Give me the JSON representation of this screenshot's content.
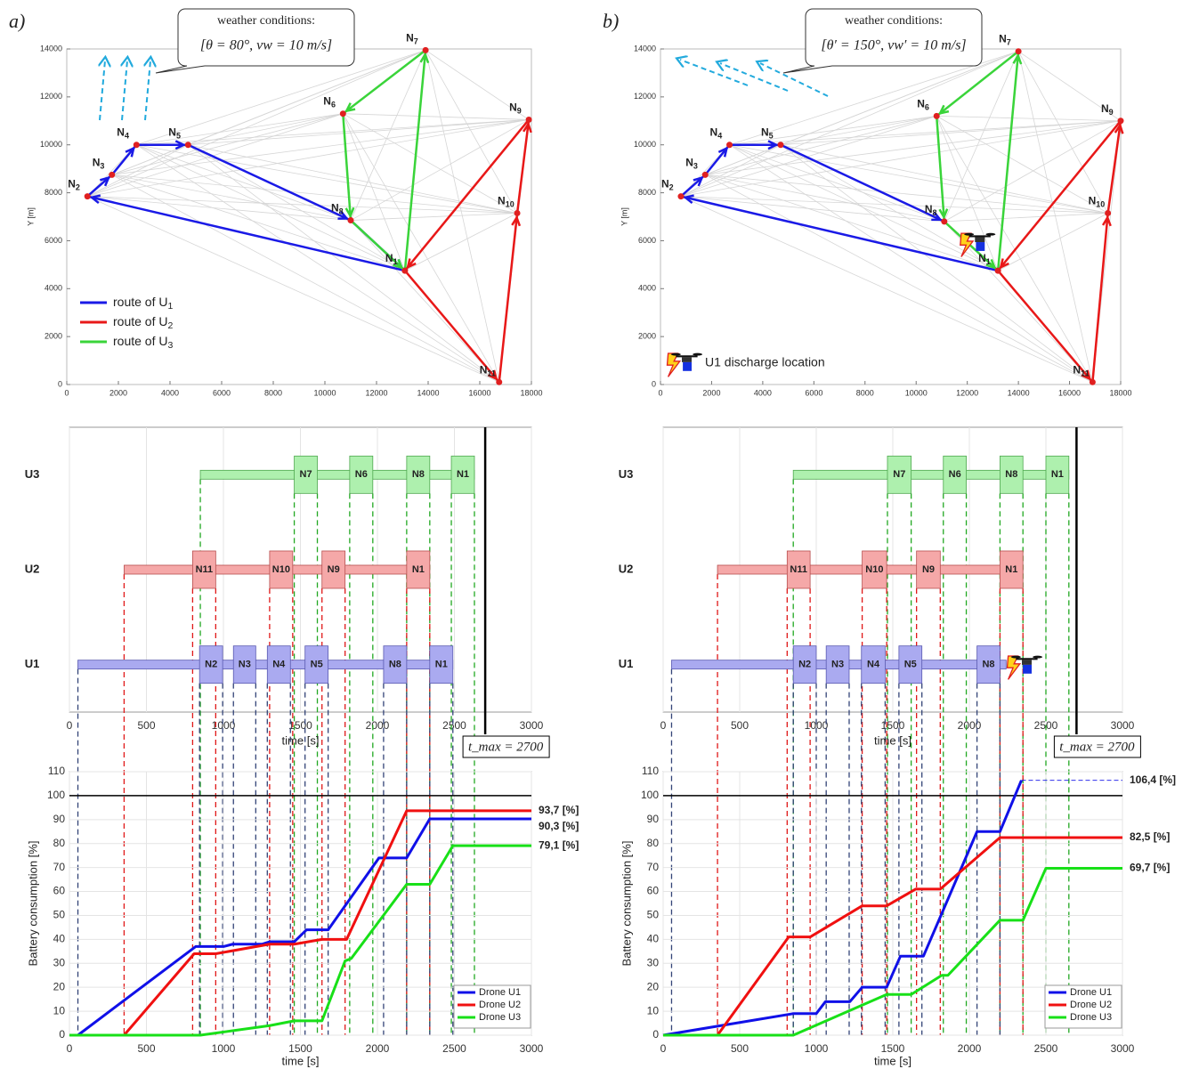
{
  "chart_data": [
    {
      "type": "network-map",
      "panel_label": "a)",
      "xlim": [
        0,
        18000
      ],
      "ylim": [
        0,
        14000
      ],
      "xticks": [
        0,
        2000,
        4000,
        6000,
        8000,
        10000,
        12000,
        14000,
        16000,
        18000
      ],
      "yticks": [
        0,
        2000,
        4000,
        6000,
        8000,
        10000,
        12000,
        14000
      ],
      "ylabel": "Y [m]",
      "weather": {
        "title": "weather conditions:",
        "text": "[θ = 80°, vw = 10 m/s]"
      },
      "edge_color": "#d6d6d6",
      "node_color": "#e02020",
      "legend": "lower left",
      "nodes": [
        {
          "label": "N1",
          "x": 13100,
          "y": 4750
        },
        {
          "label": "N2",
          "x": 800,
          "y": 7850
        },
        {
          "label": "N3",
          "x": 1750,
          "y": 8750
        },
        {
          "label": "N4",
          "x": 2700,
          "y": 10000
        },
        {
          "label": "N5",
          "x": 4700,
          "y": 10000
        },
        {
          "label": "N6",
          "x": 10700,
          "y": 11300
        },
        {
          "label": "N7",
          "x": 13900,
          "y": 13950
        },
        {
          "label": "N8",
          "x": 11000,
          "y": 6850
        },
        {
          "label": "N9",
          "x": 17900,
          "y": 11050
        },
        {
          "label": "N10",
          "x": 17450,
          "y": 7150
        },
        {
          "label": "N11",
          "x": 16750,
          "y": 100
        }
      ],
      "series": [
        {
          "name": "route of U1",
          "color": "#1a1ae6",
          "route": [
            "N1",
            "N2",
            "N3",
            "N4",
            "N5",
            "N8",
            "N1"
          ]
        },
        {
          "name": "route of U2",
          "color": "#e81818",
          "route": [
            "N1",
            "N11",
            "N10",
            "N9",
            "N1"
          ]
        },
        {
          "name": "route of U3",
          "color": "#3ad43a",
          "route": [
            "N1",
            "N7",
            "N6",
            "N8",
            "N1"
          ]
        }
      ]
    },
    {
      "type": "network-map",
      "panel_label": "b)",
      "xlim": [
        0,
        18000
      ],
      "ylim": [
        0,
        14000
      ],
      "xticks": [
        0,
        2000,
        4000,
        6000,
        8000,
        10000,
        12000,
        14000,
        16000,
        18000
      ],
      "yticks": [
        0,
        2000,
        4000,
        6000,
        8000,
        10000,
        12000,
        14000
      ],
      "ylabel": "Y [m]",
      "weather": {
        "title": "weather conditions:",
        "text": "[θ′ = 150°, vw′ = 10 m/s]"
      },
      "edge_color": "#d6d6d6",
      "node_color": "#e02020",
      "discharge_location": {
        "label": "U1 discharge location",
        "x": 12300,
        "y": 5900
      },
      "nodes": [
        {
          "label": "N1",
          "x": 13200,
          "y": 4750
        },
        {
          "label": "N2",
          "x": 800,
          "y": 7850
        },
        {
          "label": "N3",
          "x": 1750,
          "y": 8750
        },
        {
          "label": "N4",
          "x": 2700,
          "y": 10000
        },
        {
          "label": "N5",
          "x": 4700,
          "y": 10000
        },
        {
          "label": "N6",
          "x": 10800,
          "y": 11200
        },
        {
          "label": "N7",
          "x": 14000,
          "y": 13900
        },
        {
          "label": "N8",
          "x": 11100,
          "y": 6800
        },
        {
          "label": "N9",
          "x": 18000,
          "y": 11000
        },
        {
          "label": "N10",
          "x": 17500,
          "y": 7150
        },
        {
          "label": "N11",
          "x": 16900,
          "y": 100
        }
      ],
      "series": [
        {
          "color": "#1a1ae6",
          "route": [
            "N1",
            "N2",
            "N3",
            "N4",
            "N5",
            "N8"
          ]
        },
        {
          "color": "#e81818",
          "route": [
            "N1",
            "N11",
            "N10",
            "N9",
            "N1"
          ]
        },
        {
          "color": "#3ad43a",
          "route": [
            "N1",
            "N7",
            "N6",
            "N8",
            "N1"
          ]
        }
      ]
    },
    {
      "type": "gantt",
      "xlim": [
        0,
        3000
      ],
      "xticks": [
        0,
        500,
        1000,
        1500,
        2000,
        2500,
        3000
      ],
      "xlabel": "time [s]",
      "grid": true,
      "tmax": {
        "value": 2700,
        "label": "t_max = 2700"
      },
      "rows": [
        {
          "name": "U3",
          "color": "#aef0ae",
          "edge_color": "#4fa84f",
          "line_color": "#22a822",
          "start": 850,
          "end": 2630,
          "tasks": [
            {
              "label": "N7",
              "start": 1460,
              "end": 1610
            },
            {
              "label": "N6",
              "start": 1820,
              "end": 1970
            },
            {
              "label": "N8",
              "start": 2190,
              "end": 2340
            },
            {
              "label": "N1",
              "start": 2480,
              "end": 2630
            }
          ]
        },
        {
          "name": "U2",
          "color": "#f5a8a8",
          "edge_color": "#b85050",
          "line_color": "#e01818",
          "start": 355,
          "end": 2340,
          "tasks": [
            {
              "label": "N11",
              "start": 800,
              "end": 950
            },
            {
              "label": "N10",
              "start": 1300,
              "end": 1450
            },
            {
              "label": "N9",
              "start": 1640,
              "end": 1790
            },
            {
              "label": "N1",
              "start": 2190,
              "end": 2340
            }
          ]
        },
        {
          "name": "U1",
          "color": "#aaaaf0",
          "edge_color": "#5a5ab0",
          "line_color": "#334477",
          "start": 55,
          "end": 2490,
          "tasks": [
            {
              "label": "N2",
              "start": 845,
              "end": 995
            },
            {
              "label": "N3",
              "start": 1065,
              "end": 1210
            },
            {
              "label": "N4",
              "start": 1285,
              "end": 1435
            },
            {
              "label": "N5",
              "start": 1530,
              "end": 1680
            },
            {
              "label": "N8",
              "start": 2040,
              "end": 2190
            },
            {
              "label": "N1",
              "start": 2340,
              "end": 2490
            }
          ]
        }
      ]
    },
    {
      "type": "gantt",
      "xlim": [
        0,
        3000
      ],
      "xticks": [
        0,
        500,
        1000,
        1500,
        2000,
        2500,
        3000
      ],
      "xlabel": "time [s]",
      "grid": true,
      "tmax": {
        "value": 2700,
        "label": "t_max = 2700"
      },
      "rows": [
        {
          "name": "U3",
          "color": "#aef0ae",
          "edge_color": "#4fa84f",
          "line_color": "#22a822",
          "start": 850,
          "end": 2650,
          "tasks": [
            {
              "label": "N7",
              "start": 1465,
              "end": 1620
            },
            {
              "label": "N6",
              "start": 1830,
              "end": 1980
            },
            {
              "label": "N8",
              "start": 2200,
              "end": 2350
            },
            {
              "label": "N1",
              "start": 2500,
              "end": 2650
            }
          ]
        },
        {
          "name": "U2",
          "color": "#f5a8a8",
          "edge_color": "#b85050",
          "line_color": "#e01818",
          "start": 355,
          "end": 2350,
          "tasks": [
            {
              "label": "N11",
              "start": 810,
              "end": 960
            },
            {
              "label": "N10",
              "start": 1300,
              "end": 1460
            },
            {
              "label": "N9",
              "start": 1655,
              "end": 1810
            },
            {
              "label": "N1",
              "start": 2200,
              "end": 2350
            }
          ]
        },
        {
          "name": "U1",
          "color": "#aaaaf0",
          "edge_color": "#5a5ab0",
          "line_color": "#334477",
          "start": 55,
          "end": 2240,
          "tasks": [
            {
              "label": "N2",
              "start": 850,
              "end": 1000
            },
            {
              "label": "N3",
              "start": 1065,
              "end": 1215
            },
            {
              "label": "N4",
              "start": 1295,
              "end": 1450
            },
            {
              "label": "N5",
              "start": 1540,
              "end": 1690
            },
            {
              "label": "N8",
              "start": 2050,
              "end": 2200
            }
          ]
        }
      ]
    },
    {
      "type": "line",
      "xlim": [
        0,
        3000
      ],
      "ylim": [
        0,
        110
      ],
      "xticks": [
        0,
        500,
        1000,
        1500,
        2000,
        2500,
        3000
      ],
      "yticks": [
        0,
        10,
        20,
        30,
        40,
        50,
        60,
        70,
        80,
        90,
        100,
        110
      ],
      "xlabel": "time [s]",
      "ylabel": "Battery consumption [%]",
      "grid": true,
      "hline": 100,
      "legend": "lower right",
      "series": [
        {
          "name": "Drone U1",
          "color": "#1010e8",
          "x": [
            0,
            55,
            820,
            1000,
            1060,
            1250,
            1300,
            1460,
            1540,
            1680,
            2010,
            2190,
            2340,
            3000
          ],
          "values": [
            0,
            0,
            37,
            37,
            38,
            38,
            39,
            39,
            44,
            44,
            74,
            74,
            90.3,
            90.3
          ],
          "value_labels": [
            null,
            null,
            null,
            null,
            null,
            null,
            null,
            null,
            null,
            null,
            null,
            null,
            null,
            "90,3 [%]"
          ]
        },
        {
          "name": "Drone U2",
          "color": "#f01010",
          "x": [
            0,
            355,
            810,
            950,
            1300,
            1460,
            1640,
            1800,
            2190,
            3000
          ],
          "values": [
            0,
            0,
            34,
            34,
            38,
            38,
            40,
            40,
            93.7,
            93.7
          ],
          "value_labels": [
            null,
            null,
            null,
            null,
            null,
            null,
            null,
            null,
            null,
            "93,7 [%]"
          ]
        },
        {
          "name": "Drone U3",
          "color": "#18e018",
          "x": [
            0,
            850,
            1300,
            1460,
            1640,
            1790,
            1830,
            2190,
            2340,
            2490,
            3000
          ],
          "values": [
            0,
            0,
            4,
            6,
            6,
            31,
            32,
            63,
            63,
            79.1,
            79.1
          ],
          "value_labels": [
            null,
            null,
            null,
            null,
            null,
            null,
            null,
            null,
            null,
            null,
            "79,1 [%]"
          ]
        }
      ]
    },
    {
      "type": "line",
      "xlim": [
        0,
        3000
      ],
      "ylim": [
        0,
        110
      ],
      "xticks": [
        0,
        500,
        1000,
        1500,
        2000,
        2500,
        3000
      ],
      "yticks": [
        0,
        10,
        20,
        30,
        40,
        50,
        60,
        70,
        80,
        90,
        100,
        110
      ],
      "xlabel": "time [s]",
      "ylabel": "Battery consumption [%]",
      "grid": true,
      "hline": 100,
      "legend": "lower right",
      "series": [
        {
          "name": "Drone U1",
          "color": "#1010e8",
          "x": [
            0,
            850,
            1000,
            1060,
            1220,
            1300,
            1460,
            1550,
            1700,
            2050,
            2200,
            2340
          ],
          "values": [
            0,
            9,
            9,
            14,
            14,
            20,
            20,
            33,
            33,
            85,
            85,
            106.4
          ],
          "value_labels": [
            null,
            null,
            null,
            null,
            null,
            null,
            null,
            null,
            null,
            null,
            null,
            "106,4 [%]"
          ]
        },
        {
          "name": "Drone U2",
          "color": "#f01010",
          "x": [
            0,
            355,
            820,
            960,
            1300,
            1460,
            1650,
            1810,
            2200,
            3000
          ],
          "values": [
            0,
            0,
            41,
            41,
            54,
            54,
            61,
            61,
            82.5,
            82.5
          ],
          "value_labels": [
            null,
            null,
            null,
            null,
            null,
            null,
            null,
            null,
            null,
            "82,5 [%]"
          ]
        },
        {
          "name": "Drone U3",
          "color": "#18e018",
          "x": [
            0,
            850,
            1460,
            1620,
            1820,
            1860,
            2200,
            2350,
            2500,
            3000
          ],
          "values": [
            0,
            0,
            17,
            17,
            25,
            25,
            48,
            48,
            69.7,
            69.7
          ],
          "value_labels": [
            null,
            null,
            null,
            null,
            null,
            null,
            null,
            null,
            null,
            "69,7 [%]"
          ]
        }
      ]
    }
  ]
}
